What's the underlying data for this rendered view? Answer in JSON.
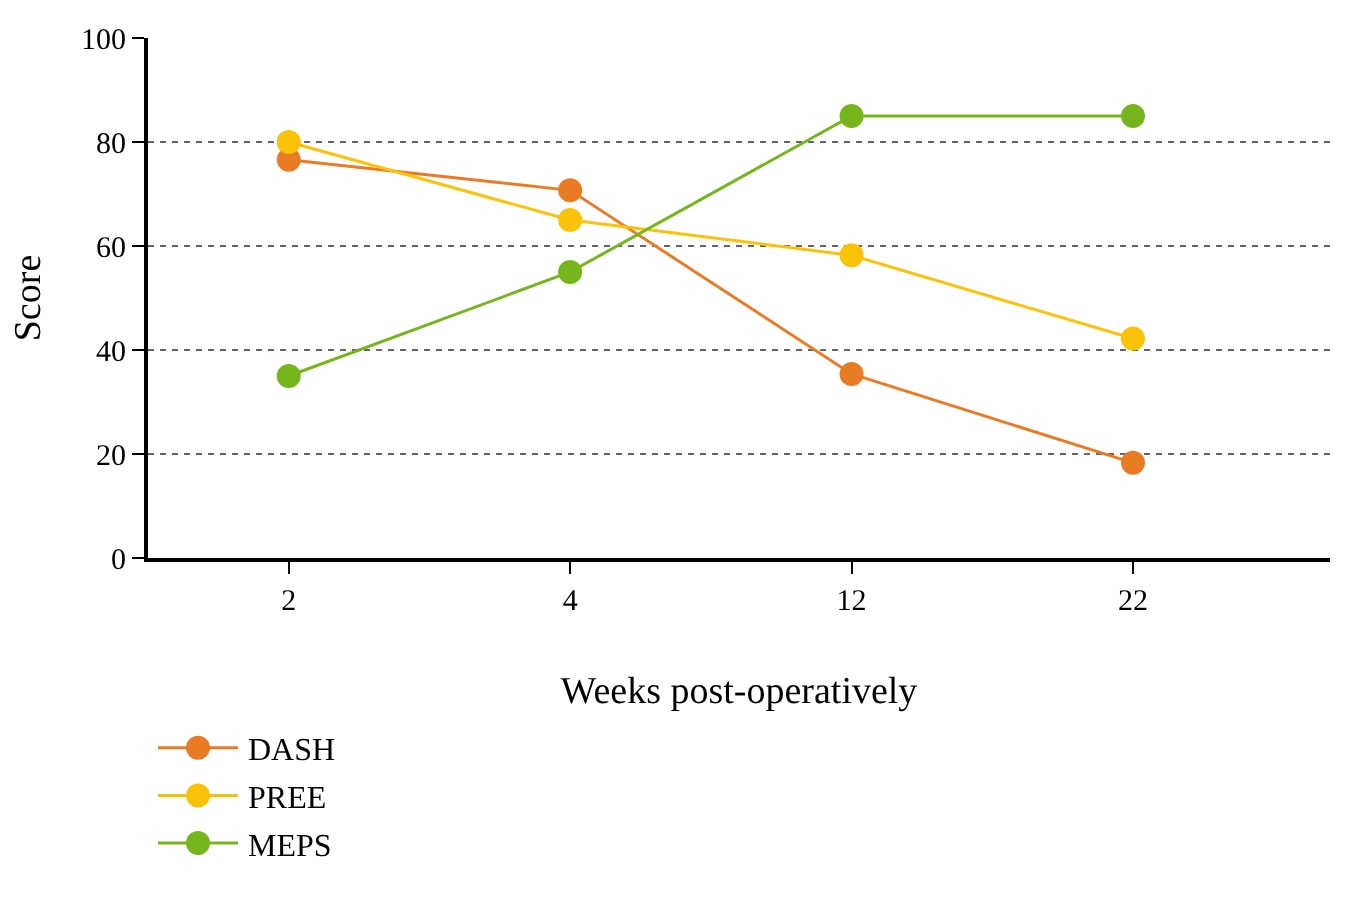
{
  "chart_data": {
    "type": "line",
    "xlabel": "Weeks post-operatively",
    "ylabel": "Score",
    "categories": [
      "2",
      "4",
      "12",
      "22"
    ],
    "series": [
      {
        "name": "DASH",
        "color": "#ea7b25",
        "values": [
          76.6,
          70.7,
          35.4,
          18.3
        ]
      },
      {
        "name": "PREE",
        "color": "#fbc20a",
        "values": [
          80,
          65,
          58.2,
          42.2
        ]
      },
      {
        "name": "MEPS",
        "color": "#76b51b",
        "values": [
          35,
          55,
          85,
          85
        ]
      }
    ],
    "ylim": [
      0,
      100
    ],
    "yticks": [
      0,
      20,
      40,
      60,
      80,
      100
    ],
    "grid": "y",
    "legend": "bottom left",
    "marker": "circle",
    "line_style": "solid"
  }
}
